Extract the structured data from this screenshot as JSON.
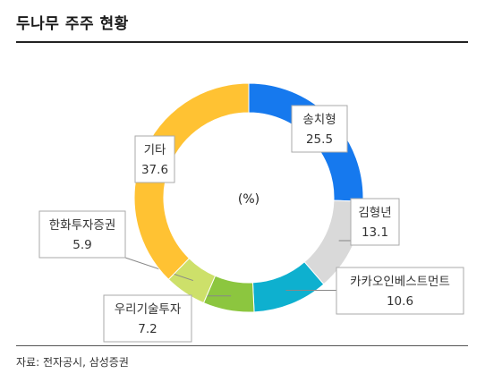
{
  "header": {
    "title": "두나무 주주 현황"
  },
  "footer": {
    "source": "자료: 전자공시, 삼성증권"
  },
  "chart_data": {
    "type": "donut",
    "unit": "(%)",
    "series": [
      {
        "name": "송치형",
        "value": 25.5,
        "color": "#1679EE"
      },
      {
        "name": "김형년",
        "value": 13.1,
        "color": "#D9D9D9"
      },
      {
        "name": "카카오인베스트먼트",
        "value": 10.6,
        "color": "#0EB0CF"
      },
      {
        "name": "우리기술투자",
        "value": 7.2,
        "color": "#8CC63F"
      },
      {
        "name": "한화투자증권",
        "value": 5.9,
        "color": "#CDE06A"
      },
      {
        "name": "기타",
        "value": 37.6,
        "color": "#FFC233"
      }
    ]
  }
}
